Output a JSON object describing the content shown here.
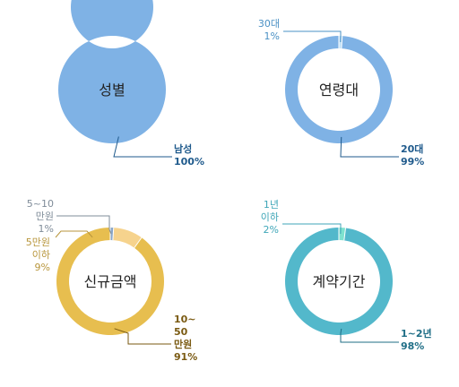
{
  "chart_data": [
    {
      "type": "pie",
      "title": "성별",
      "slices": [
        {
          "label": [
            "남성",
            "100%"
          ],
          "value": 100,
          "color": "#7FB2E5",
          "label_color": "#1F5A8C",
          "label_bold": true
        }
      ]
    },
    {
      "type": "pie",
      "title": "연령대",
      "slices": [
        {
          "label": [
            "20대",
            "99%"
          ],
          "value": 99,
          "color": "#7FB2E5",
          "label_color": "#1F5A8C",
          "label_bold": true
        },
        {
          "label": [
            "30대",
            "1%"
          ],
          "value": 1,
          "color": "#BFE0F7",
          "label_color": "#4A90C4",
          "label_bold": false
        }
      ]
    },
    {
      "type": "pie",
      "title": "신규금액",
      "slices": [
        {
          "label": [
            "10~",
            "50",
            "만원",
            "91%"
          ],
          "value": 91,
          "color": "#E7BE4F",
          "label_color": "#7A5A12",
          "label_bold": true
        },
        {
          "label": [
            "5만원",
            "이하",
            "9%"
          ],
          "value": 9,
          "color": "#F6D38D",
          "label_color": "#B8963C",
          "label_bold": false
        },
        {
          "label": [
            "5~10",
            "만원",
            "1%"
          ],
          "value": 1,
          "color": "#8AA6C8",
          "label_color": "#7F8C99",
          "label_bold": false
        }
      ]
    },
    {
      "type": "pie",
      "title": "계약기간",
      "slices": [
        {
          "label": [
            "1~2년",
            "98%"
          ],
          "value": 98,
          "color": "#53B8CB",
          "label_color": "#1F6E86",
          "label_bold": true
        },
        {
          "label": [
            "1년",
            "이하",
            "2%"
          ],
          "value": 2,
          "color": "#7FE2CF",
          "label_color": "#3FA6B8",
          "label_bold": false
        }
      ]
    }
  ]
}
